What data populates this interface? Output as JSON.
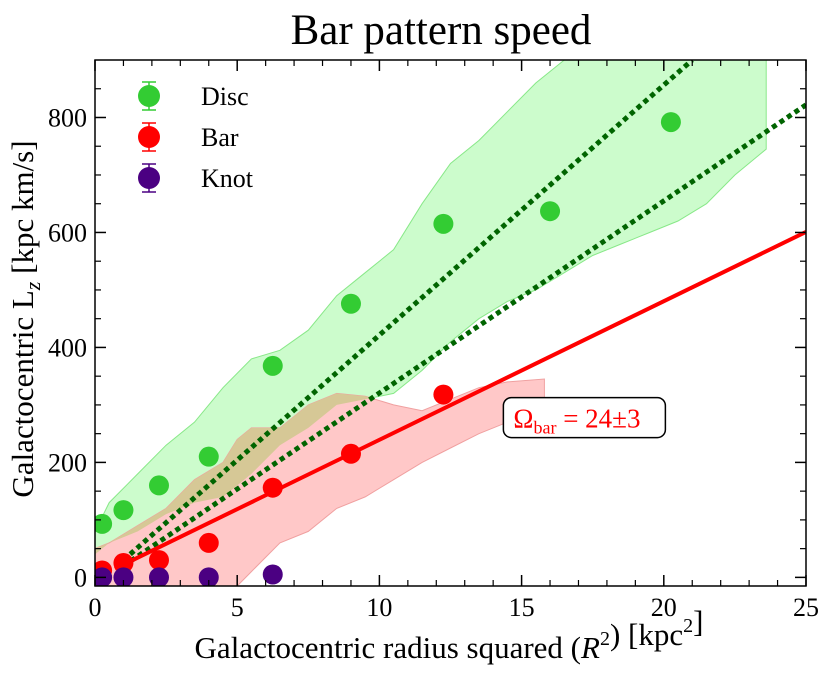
{
  "chart_data": {
    "type": "scatter",
    "title": "Bar pattern speed",
    "xlabel": "Galactocentric radius squared (R²) [kpc²]",
    "ylabel": "Galactocentric L_z [kpc km/s]",
    "xlim": [
      0,
      25
    ],
    "ylim": [
      -15,
      900
    ],
    "x_ticks": [
      0,
      5,
      10,
      15,
      20,
      25
    ],
    "y_ticks": [
      0,
      200,
      400,
      600,
      800
    ],
    "grid": false,
    "legend_position": "top-left",
    "series": [
      {
        "name": "Disc",
        "color": "#33cc33",
        "band_color": "#ccfccc",
        "x": [
          0.25,
          1.0,
          2.25,
          4.0,
          6.25,
          9.0,
          12.25,
          16.0,
          20.25
        ],
        "y": [
          93,
          117,
          160,
          210,
          368,
          476,
          615,
          637,
          792
        ],
        "band": {
          "x": [
            0.0,
            0.5,
            1.5,
            2.5,
            3.5,
            4.5,
            5.5,
            6.5,
            7.5,
            8.5,
            9.5,
            10.5,
            11.5,
            12.5,
            13.5,
            14.5,
            15.5,
            16.5,
            17.5,
            18.5,
            19.5,
            20.5,
            21.5,
            22.5,
            23.6
          ],
          "upper": [
            80,
            130,
            180,
            230,
            270,
            330,
            380,
            395,
            430,
            490,
            530,
            570,
            650,
            720,
            760,
            810,
            860,
            900,
            900,
            900,
            900,
            900,
            900,
            900,
            900
          ],
          "lower": [
            40,
            60,
            80,
            110,
            130,
            140,
            180,
            230,
            260,
            300,
            310,
            320,
            360,
            410,
            450,
            480,
            500,
            530,
            560,
            580,
            600,
            620,
            650,
            700,
            745
          ]
        }
      },
      {
        "name": "Bar",
        "color": "#ff0000",
        "band_color": "#ffc8c8",
        "x": [
          0.25,
          1.0,
          2.25,
          4.0,
          6.25,
          9.0,
          12.25
        ],
        "y": [
          12,
          25,
          30,
          60,
          156,
          215,
          318
        ],
        "band": {
          "x": [
            0.0,
            0.5,
            1.5,
            2.5,
            3.5,
            4.5,
            5.0,
            5.5,
            6.5,
            7.5,
            8.5,
            9.5,
            10.5,
            11.5,
            12.5,
            13.5,
            14.5,
            15.8
          ],
          "upper": [
            50,
            60,
            90,
            120,
            170,
            200,
            240,
            260,
            260,
            300,
            320,
            315,
            300,
            290,
            310,
            330,
            340,
            345
          ],
          "lower": [
            -15,
            -15,
            -15,
            -15,
            -15,
            -15,
            -15,
            10,
            60,
            80,
            120,
            140,
            170,
            200,
            225,
            250,
            270,
            280
          ]
        }
      },
      {
        "name": "Knot",
        "color": "#4b0082",
        "x": [
          0.25,
          1.0,
          2.25,
          4.0,
          6.25
        ],
        "y": [
          0,
          0,
          0,
          0,
          5
        ]
      }
    ],
    "overlap_band_color": "#d6c896",
    "fit_line": {
      "color": "#ff0000",
      "x": [
        0.7,
        25
      ],
      "y": [
        15,
        601
      ]
    },
    "dotted_lines": {
      "color": "#006400",
      "lines": [
        {
          "x": [
            1.0,
            21.0
          ],
          "y": [
            30,
            900
          ]
        },
        {
          "x": [
            1.0,
            25.0
          ],
          "y": [
            20,
            822
          ]
        }
      ]
    },
    "annotation": {
      "label_symbol": "Ω",
      "label_sub": "bar",
      "label_value": " = 24±3",
      "color": "#ff0000",
      "x": 14.5,
      "y": 278
    }
  }
}
